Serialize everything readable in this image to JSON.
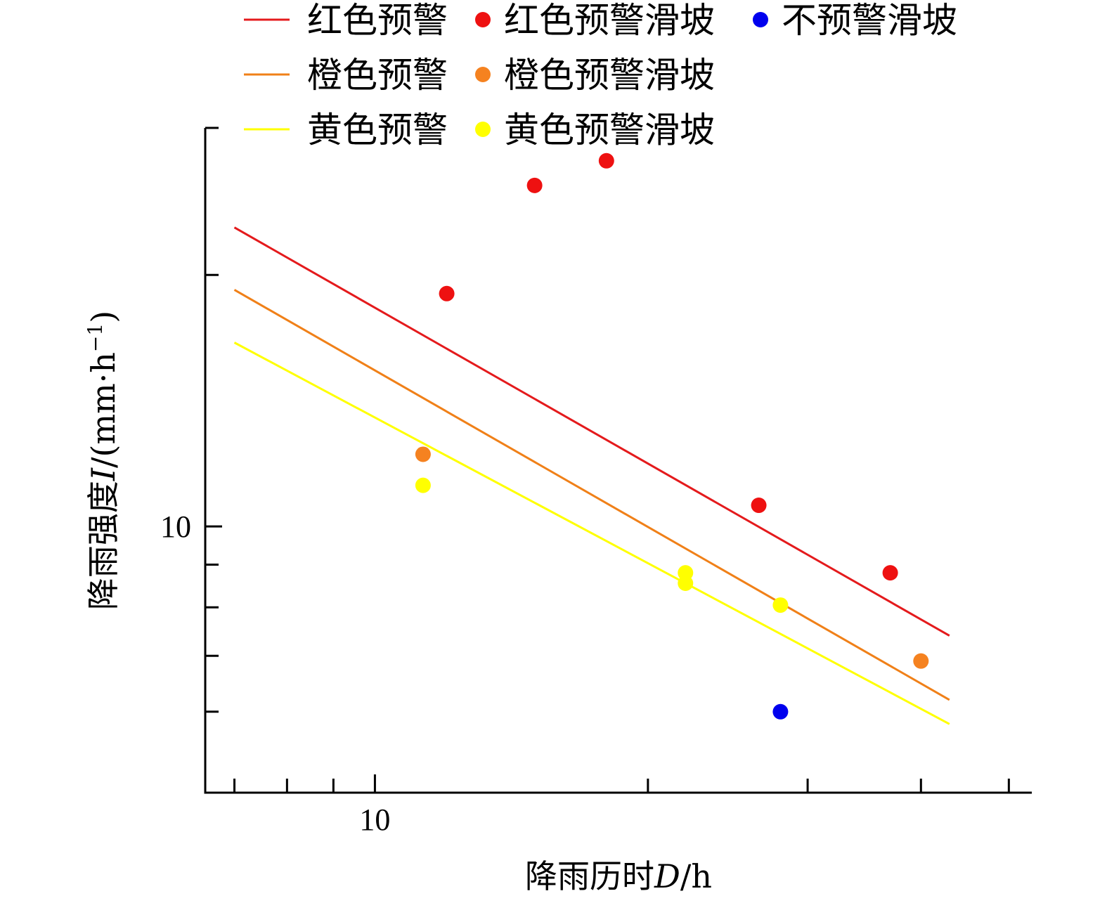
{
  "chart_data": {
    "type": "scatter",
    "scale": "log-log",
    "xlabel": {
      "prefix": "降雨历时",
      "var": "D",
      "suffix": "/h"
    },
    "ylabel": {
      "prefix": "降雨强度",
      "var": "I",
      "suffix": "/(mm·h",
      "sup": "−1",
      "close": ")"
    },
    "xlim": [
      6.5,
      53
    ],
    "ylim": [
      4.8,
      30
    ],
    "x_major_ticks": [
      10
    ],
    "x_minor_ticks": [
      7,
      8,
      9,
      20,
      30,
      40,
      50
    ],
    "x_tick_labels": [
      "10"
    ],
    "y_major_ticks": [
      10
    ],
    "y_minor_ticks": [
      6,
      7,
      8,
      9,
      20,
      30
    ],
    "y_tick_labels": [
      "10"
    ],
    "lines": [
      {
        "name": "红色预警",
        "color": "#e41a1c",
        "x": [
          7,
          43
        ],
        "y": [
          22.8,
          7.4
        ]
      },
      {
        "name": "橙色预警",
        "color": "#f08018",
        "x": [
          7,
          43
        ],
        "y": [
          19.2,
          6.2
        ]
      },
      {
        "name": "黄色预警",
        "color": "#ffff00",
        "x": [
          7,
          43
        ],
        "y": [
          16.6,
          5.8
        ]
      }
    ],
    "series": [
      {
        "name": "红色预警滑坡",
        "color": "#ee1111",
        "points": [
          {
            "x": 12,
            "y": 19
          },
          {
            "x": 15,
            "y": 25.6
          },
          {
            "x": 18,
            "y": 27.4
          },
          {
            "x": 26.5,
            "y": 10.6
          },
          {
            "x": 37,
            "y": 8.8
          }
        ]
      },
      {
        "name": "橙色预警滑坡",
        "color": "#f58220",
        "points": [
          {
            "x": 11.3,
            "y": 12.2
          },
          {
            "x": 40,
            "y": 6.9
          }
        ]
      },
      {
        "name": "黄色预警滑坡",
        "color": "#ffff00",
        "points": [
          {
            "x": 11.3,
            "y": 11.2
          },
          {
            "x": 22,
            "y": 8.8
          },
          {
            "x": 22,
            "y": 8.55
          },
          {
            "x": 28,
            "y": 8.05
          }
        ]
      },
      {
        "name": "不预警滑坡",
        "color": "#0000ee",
        "points": [
          {
            "x": 28,
            "y": 6.0
          }
        ]
      }
    ],
    "legend": {
      "position": "top",
      "rows": [
        [
          {
            "kind": "line",
            "label": "红色预警",
            "color": "#e41a1c"
          },
          {
            "kind": "marker",
            "label": "红色预警滑坡",
            "color": "#ee1111"
          },
          {
            "kind": "marker",
            "label": "不预警滑坡",
            "color": "#0000ee"
          }
        ],
        [
          {
            "kind": "line",
            "label": "橙色预警",
            "color": "#f08018"
          },
          {
            "kind": "marker",
            "label": "橙色预警滑坡",
            "color": "#f58220"
          }
        ],
        [
          {
            "kind": "line",
            "label": "黄色预警",
            "color": "#ffff00"
          },
          {
            "kind": "marker",
            "label": "黄色预警滑坡",
            "color": "#ffff00"
          }
        ]
      ]
    }
  }
}
